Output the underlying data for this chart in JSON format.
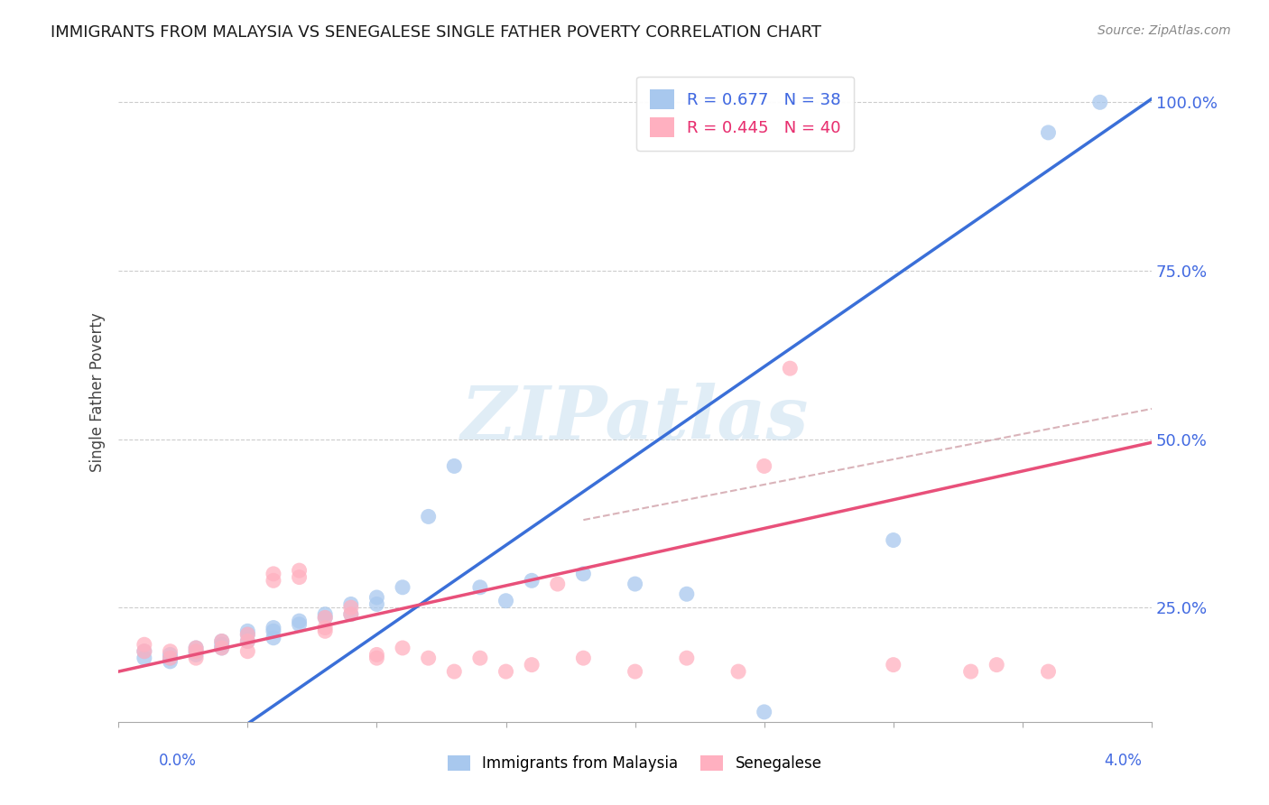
{
  "title": "IMMIGRANTS FROM MALAYSIA VS SENEGALESE SINGLE FATHER POVERTY CORRELATION CHART",
  "source": "Source: ZipAtlas.com",
  "ylabel": "Single Father Poverty",
  "ytick_vals": [
    0.25,
    0.5,
    0.75,
    1.0
  ],
  "ytick_labels": [
    "25.0%",
    "50.0%",
    "75.0%",
    "100.0%"
  ],
  "legend1_label": "R = 0.677   N = 38",
  "legend2_label": "R = 0.445   N = 40",
  "legend_labels": [
    "Immigrants from Malaysia",
    "Senegalese"
  ],
  "blue_scatter_x": [
    0.001,
    0.001,
    0.002,
    0.002,
    0.002,
    0.003,
    0.003,
    0.003,
    0.004,
    0.004,
    0.004,
    0.005,
    0.005,
    0.005,
    0.006,
    0.006,
    0.006,
    0.007,
    0.007,
    0.008,
    0.008,
    0.009,
    0.009,
    0.01,
    0.01,
    0.011,
    0.012,
    0.013,
    0.014,
    0.015,
    0.016,
    0.018,
    0.02,
    0.022,
    0.025,
    0.03,
    0.036,
    0.038
  ],
  "blue_scatter_y": [
    0.175,
    0.185,
    0.17,
    0.18,
    0.175,
    0.185,
    0.19,
    0.18,
    0.19,
    0.2,
    0.195,
    0.21,
    0.2,
    0.215,
    0.22,
    0.215,
    0.205,
    0.23,
    0.225,
    0.235,
    0.24,
    0.255,
    0.24,
    0.265,
    0.255,
    0.28,
    0.385,
    0.46,
    0.28,
    0.26,
    0.29,
    0.3,
    0.285,
    0.27,
    0.095,
    0.35,
    0.955,
    1.0
  ],
  "pink_scatter_x": [
    0.001,
    0.001,
    0.002,
    0.002,
    0.003,
    0.003,
    0.003,
    0.004,
    0.004,
    0.005,
    0.005,
    0.005,
    0.006,
    0.006,
    0.007,
    0.007,
    0.008,
    0.008,
    0.008,
    0.009,
    0.009,
    0.01,
    0.01,
    0.011,
    0.012,
    0.013,
    0.014,
    0.015,
    0.016,
    0.017,
    0.018,
    0.02,
    0.022,
    0.024,
    0.026,
    0.03,
    0.033,
    0.034,
    0.036,
    0.025
  ],
  "pink_scatter_y": [
    0.185,
    0.195,
    0.175,
    0.185,
    0.175,
    0.185,
    0.19,
    0.19,
    0.2,
    0.185,
    0.2,
    0.21,
    0.29,
    0.3,
    0.295,
    0.305,
    0.215,
    0.22,
    0.235,
    0.24,
    0.25,
    0.175,
    0.18,
    0.19,
    0.175,
    0.155,
    0.175,
    0.155,
    0.165,
    0.285,
    0.175,
    0.155,
    0.175,
    0.155,
    0.605,
    0.165,
    0.155,
    0.165,
    0.155,
    0.46
  ],
  "blue_line_x": [
    0.0,
    0.04
  ],
  "blue_line_y": [
    -0.055,
    1.005
  ],
  "pink_line_x": [
    0.0,
    0.04
  ],
  "pink_line_y": [
    0.155,
    0.495
  ],
  "dash_line_x": [
    0.018,
    0.04
  ],
  "dash_line_y": [
    0.38,
    0.545
  ],
  "xlim": [
    0.0,
    0.04
  ],
  "ylim": [
    0.08,
    1.06
  ]
}
